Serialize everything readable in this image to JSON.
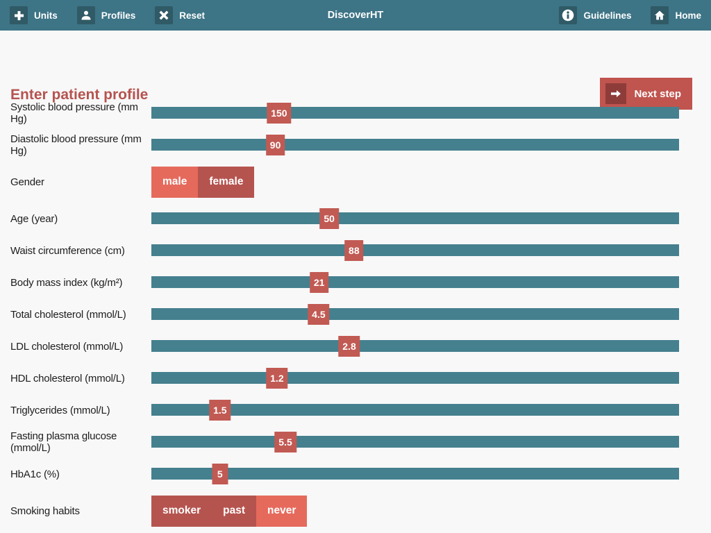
{
  "navbar": {
    "title": "DiscoverHT",
    "left_items": [
      {
        "label": "Units",
        "icon": "plus-icon"
      },
      {
        "label": "Profiles",
        "icon": "person-icon"
      },
      {
        "label": "Reset",
        "icon": "x-icon"
      }
    ],
    "right_items": [
      {
        "label": "Guidelines",
        "icon": "info-icon"
      },
      {
        "label": "Home",
        "icon": "home-icon"
      }
    ]
  },
  "page": {
    "title": "Enter patient profile",
    "next_step_label": "Next step",
    "next_step_icon": "arrow-right-icon"
  },
  "form": {
    "rows": [
      {
        "type": "slider",
        "label": "Systolic blood pressure (mm Hg)",
        "value": "150",
        "position_pct": 24.2
      },
      {
        "type": "slider",
        "label": "Diastolic blood pressure (mm Hg)",
        "value": "90",
        "position_pct": 23.5
      },
      {
        "type": "toggle",
        "label": "Gender",
        "options": [
          {
            "label": "male",
            "selected": true
          },
          {
            "label": "female",
            "selected": false
          }
        ]
      },
      {
        "type": "slider",
        "label": "Age (year)",
        "value": "50",
        "position_pct": 33.7
      },
      {
        "type": "slider",
        "label": "Waist circumference (cm)",
        "value": "88",
        "position_pct": 38.4
      },
      {
        "type": "slider",
        "label": "Body mass index (kg/m²)",
        "value": "21",
        "position_pct": 31.8
      },
      {
        "type": "slider",
        "label": "Total cholesterol (mmol/L)",
        "value": "4.5",
        "position_pct": 31.7
      },
      {
        "type": "slider",
        "label": "LDL cholesterol (mmol/L)",
        "value": "2.8",
        "position_pct": 37.5
      },
      {
        "type": "slider",
        "label": "HDL cholesterol (mmol/L)",
        "value": "1.2",
        "position_pct": 23.8
      },
      {
        "type": "slider",
        "label": "Triglycerides (mmol/L)",
        "value": "1.5",
        "position_pct": 13.0
      },
      {
        "type": "slider",
        "label": "Fasting plasma glucose (mmol/L)",
        "value": "5.5",
        "position_pct": 25.4
      },
      {
        "type": "slider",
        "label": "HbA1c (%)",
        "value": "5",
        "position_pct": 13.0
      },
      {
        "type": "toggle",
        "label": "Smoking habits",
        "options": [
          {
            "label": "smoker",
            "selected": false
          },
          {
            "label": "past",
            "selected": false
          },
          {
            "label": "never",
            "selected": true
          }
        ]
      }
    ]
  },
  "colors": {
    "navbar": "#3d7486",
    "navbar_dark": "#2f5a66",
    "track": "#45808e",
    "handle": "#c15a53",
    "heading": "#b5534f",
    "button": "#c0544e",
    "button_dark": "#8e3c3a",
    "toggle_unselected": "#b5544f",
    "toggle_selected": "#e56a5c",
    "background": "#f8f8f8"
  }
}
